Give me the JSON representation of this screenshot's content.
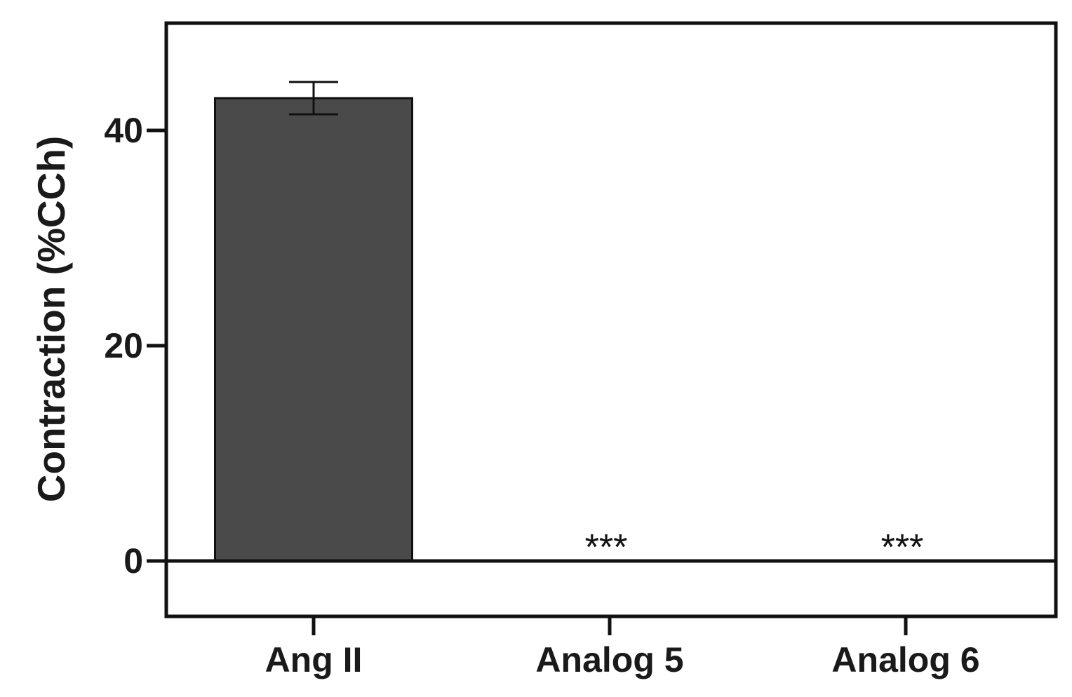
{
  "chart_data": {
    "type": "bar",
    "title": "",
    "xlabel": "",
    "ylabel": "Contraction (%CCh)",
    "ylim": [
      -13,
      50
    ],
    "yticks": [
      0,
      20,
      40
    ],
    "categories": [
      "Ang II",
      "Analog 5",
      "Analog 6"
    ],
    "series": [
      {
        "values": [
          43,
          0,
          0
        ],
        "errors": [
          1.5,
          0,
          0
        ]
      }
    ],
    "annotations": [
      "",
      "***",
      "***"
    ],
    "bar_color": "#4a4a4a",
    "grid": false,
    "legend": "none"
  }
}
